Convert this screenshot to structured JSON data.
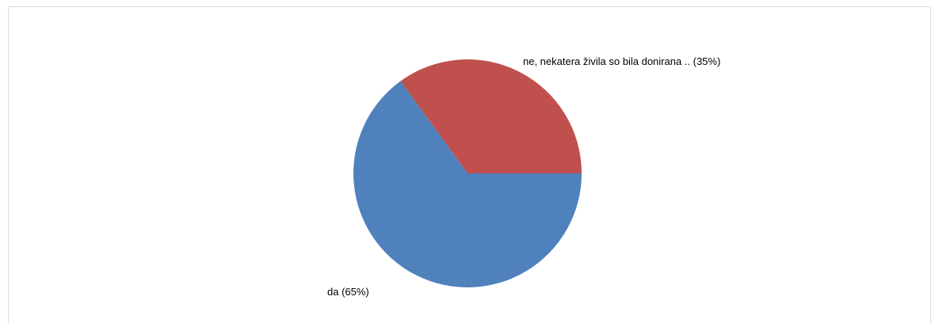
{
  "chart_data": {
    "type": "pie",
    "slices": [
      {
        "label": "ne, nekatera živila so bila donirana ..",
        "value": 35,
        "label_text": "ne, nekatera živila so bila donirana ..  (35%)",
        "color": "#C0504D"
      },
      {
        "label": "da",
        "value": 65,
        "label_text": "da (65%)",
        "color": "#4F81BD"
      }
    ],
    "start_angle_deg": 0,
    "direction": "counterclockwise",
    "legend": "none"
  }
}
